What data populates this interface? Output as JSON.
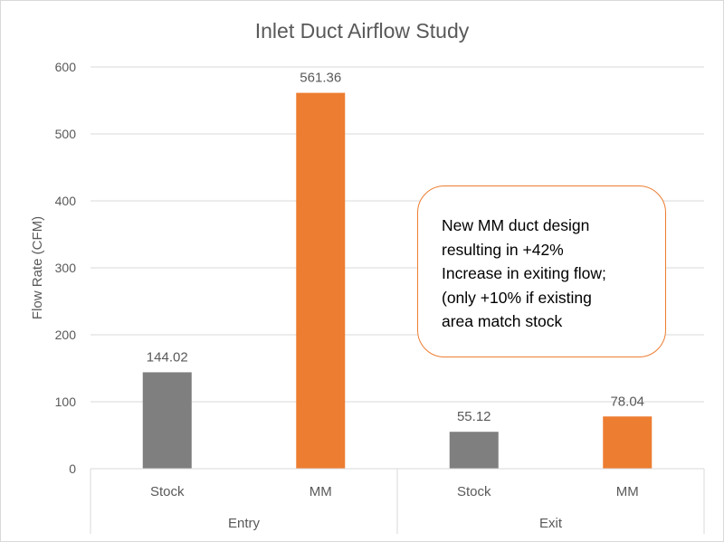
{
  "chart_data": {
    "type": "bar",
    "title": "Inlet Duct Airflow Study",
    "ylabel": "Flow Rate (CFM)",
    "xlabel": "",
    "ylim": [
      0,
      600
    ],
    "yticks": [
      0,
      100,
      200,
      300,
      400,
      500,
      600
    ],
    "grid": true,
    "groups": [
      {
        "label": "Entry",
        "bars": [
          {
            "category": "Stock",
            "value": 144.02,
            "label": "144.02",
            "color": "#7f7f7f"
          },
          {
            "category": "MM",
            "value": 561.36,
            "label": "561.36",
            "color": "#ed7d31"
          }
        ]
      },
      {
        "label": "Exit",
        "bars": [
          {
            "category": "Stock",
            "value": 55.12,
            "label": "55.12",
            "color": "#7f7f7f"
          },
          {
            "category": "MM",
            "value": 78.04,
            "label": "78.04",
            "color": "#ed7d31"
          }
        ]
      }
    ],
    "annotation": {
      "lines": [
        "New MM duct design",
        "resulting in +42%",
        "Increase in exiting flow;",
        "(only +10% if existing",
        "area match stock"
      ],
      "border_color": "#ed7d31"
    }
  }
}
